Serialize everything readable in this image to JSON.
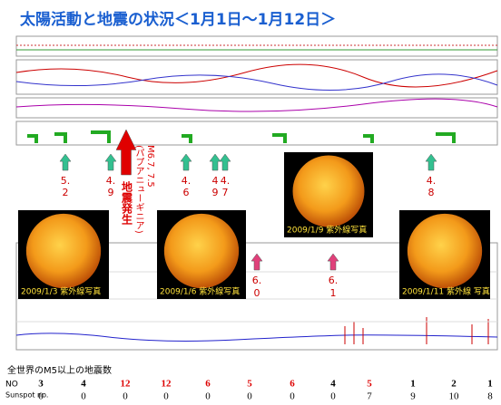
{
  "title": "太陽活動と地震の状況＜1月1日～1月12日＞",
  "quakes": [
    {
      "top": "5.",
      "bottom": "2"
    },
    {
      "top": "4.",
      "bottom": "9"
    },
    {
      "top": "4.",
      "bottom": "6"
    },
    {
      "top": "4",
      "bottom": "9"
    },
    {
      "top": "4.",
      "bottom": "7"
    },
    {
      "top": "4.",
      "bottom": "8"
    }
  ],
  "big_quake": {
    "label": "地震発生",
    "place": "(パプアニューギニア)",
    "magnitude": "M6.7, 7.5"
  },
  "flares": [
    {
      "top": "6.",
      "bottom": "0"
    },
    {
      "top": "6.",
      "bottom": "1"
    }
  ],
  "photos": [
    "2009/1/3 紫外線写真",
    "2009/1/6 紫外線写真",
    "2009/1/9 紫外線写真",
    "2009/1/11 紫外線 写真"
  ],
  "table": {
    "heading": "全世界のM5以上の地震数",
    "rows": [
      {
        "label": "NO",
        "values": [
          3,
          4,
          12,
          12,
          6,
          5,
          6,
          4,
          5,
          1,
          2,
          1
        ],
        "colors": [
          "#000",
          "#000",
          "#d00",
          "#d00",
          "#d00",
          "#d00",
          "#d00",
          "#000",
          "#d00",
          "#000",
          "#000",
          "#000"
        ]
      },
      {
        "label": "Sunspot no.",
        "values": [
          0,
          0,
          0,
          0,
          0,
          0,
          0,
          0,
          7,
          9,
          10,
          8
        ]
      }
    ]
  }
}
